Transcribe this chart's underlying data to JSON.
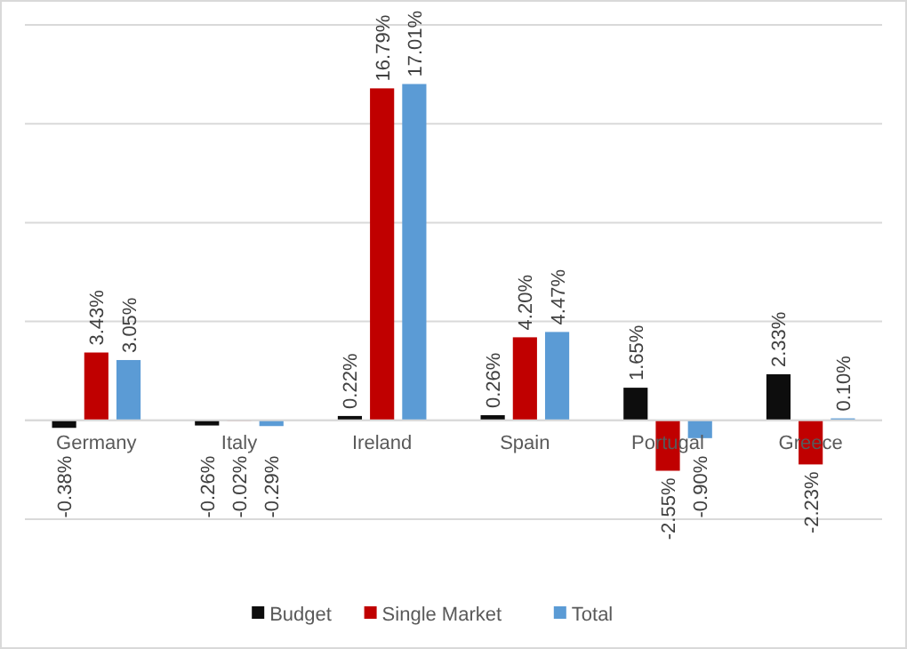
{
  "chart_data": {
    "type": "bar",
    "categories": [
      "Germany",
      "Italy",
      "Ireland",
      "Spain",
      "Portugal",
      "Greece"
    ],
    "series": [
      {
        "name": "Budget",
        "color": "#0d0d0d",
        "values": [
          -0.38,
          -0.26,
          0.22,
          0.26,
          1.65,
          2.33
        ],
        "value_labels": [
          "-0.38%",
          "-0.26%",
          "0.22%",
          "0.26%",
          "1.65%",
          "2.33%"
        ]
      },
      {
        "name": "Single Market",
        "color": "#c00000",
        "values": [
          3.43,
          -0.02,
          16.79,
          4.2,
          -2.55,
          -2.23
        ],
        "value_labels": [
          "3.43%",
          "-0.02%",
          "16.79%",
          "4.20%",
          "-2.55%",
          "-2.23%"
        ]
      },
      {
        "name": "Total",
        "color": "#5b9bd5",
        "values": [
          3.05,
          -0.29,
          17.01,
          4.47,
          -0.9,
          0.1
        ],
        "value_labels": [
          "3.05%",
          "-0.29%",
          "17.01%",
          "4.47%",
          "-0.90%",
          "0.10%"
        ]
      }
    ],
    "ylim": [
      -5,
      20
    ],
    "yticks": [
      {
        "value": -5,
        "label": null
      },
      {
        "value": 0,
        "label": null
      },
      {
        "value": 5,
        "label": null
      },
      {
        "value": 10,
        "label": null
      },
      {
        "value": 15,
        "label": null
      },
      {
        "value": 20,
        "label": null
      }
    ],
    "tick_labels": "x",
    "grid": "y",
    "legend": "bottom"
  }
}
